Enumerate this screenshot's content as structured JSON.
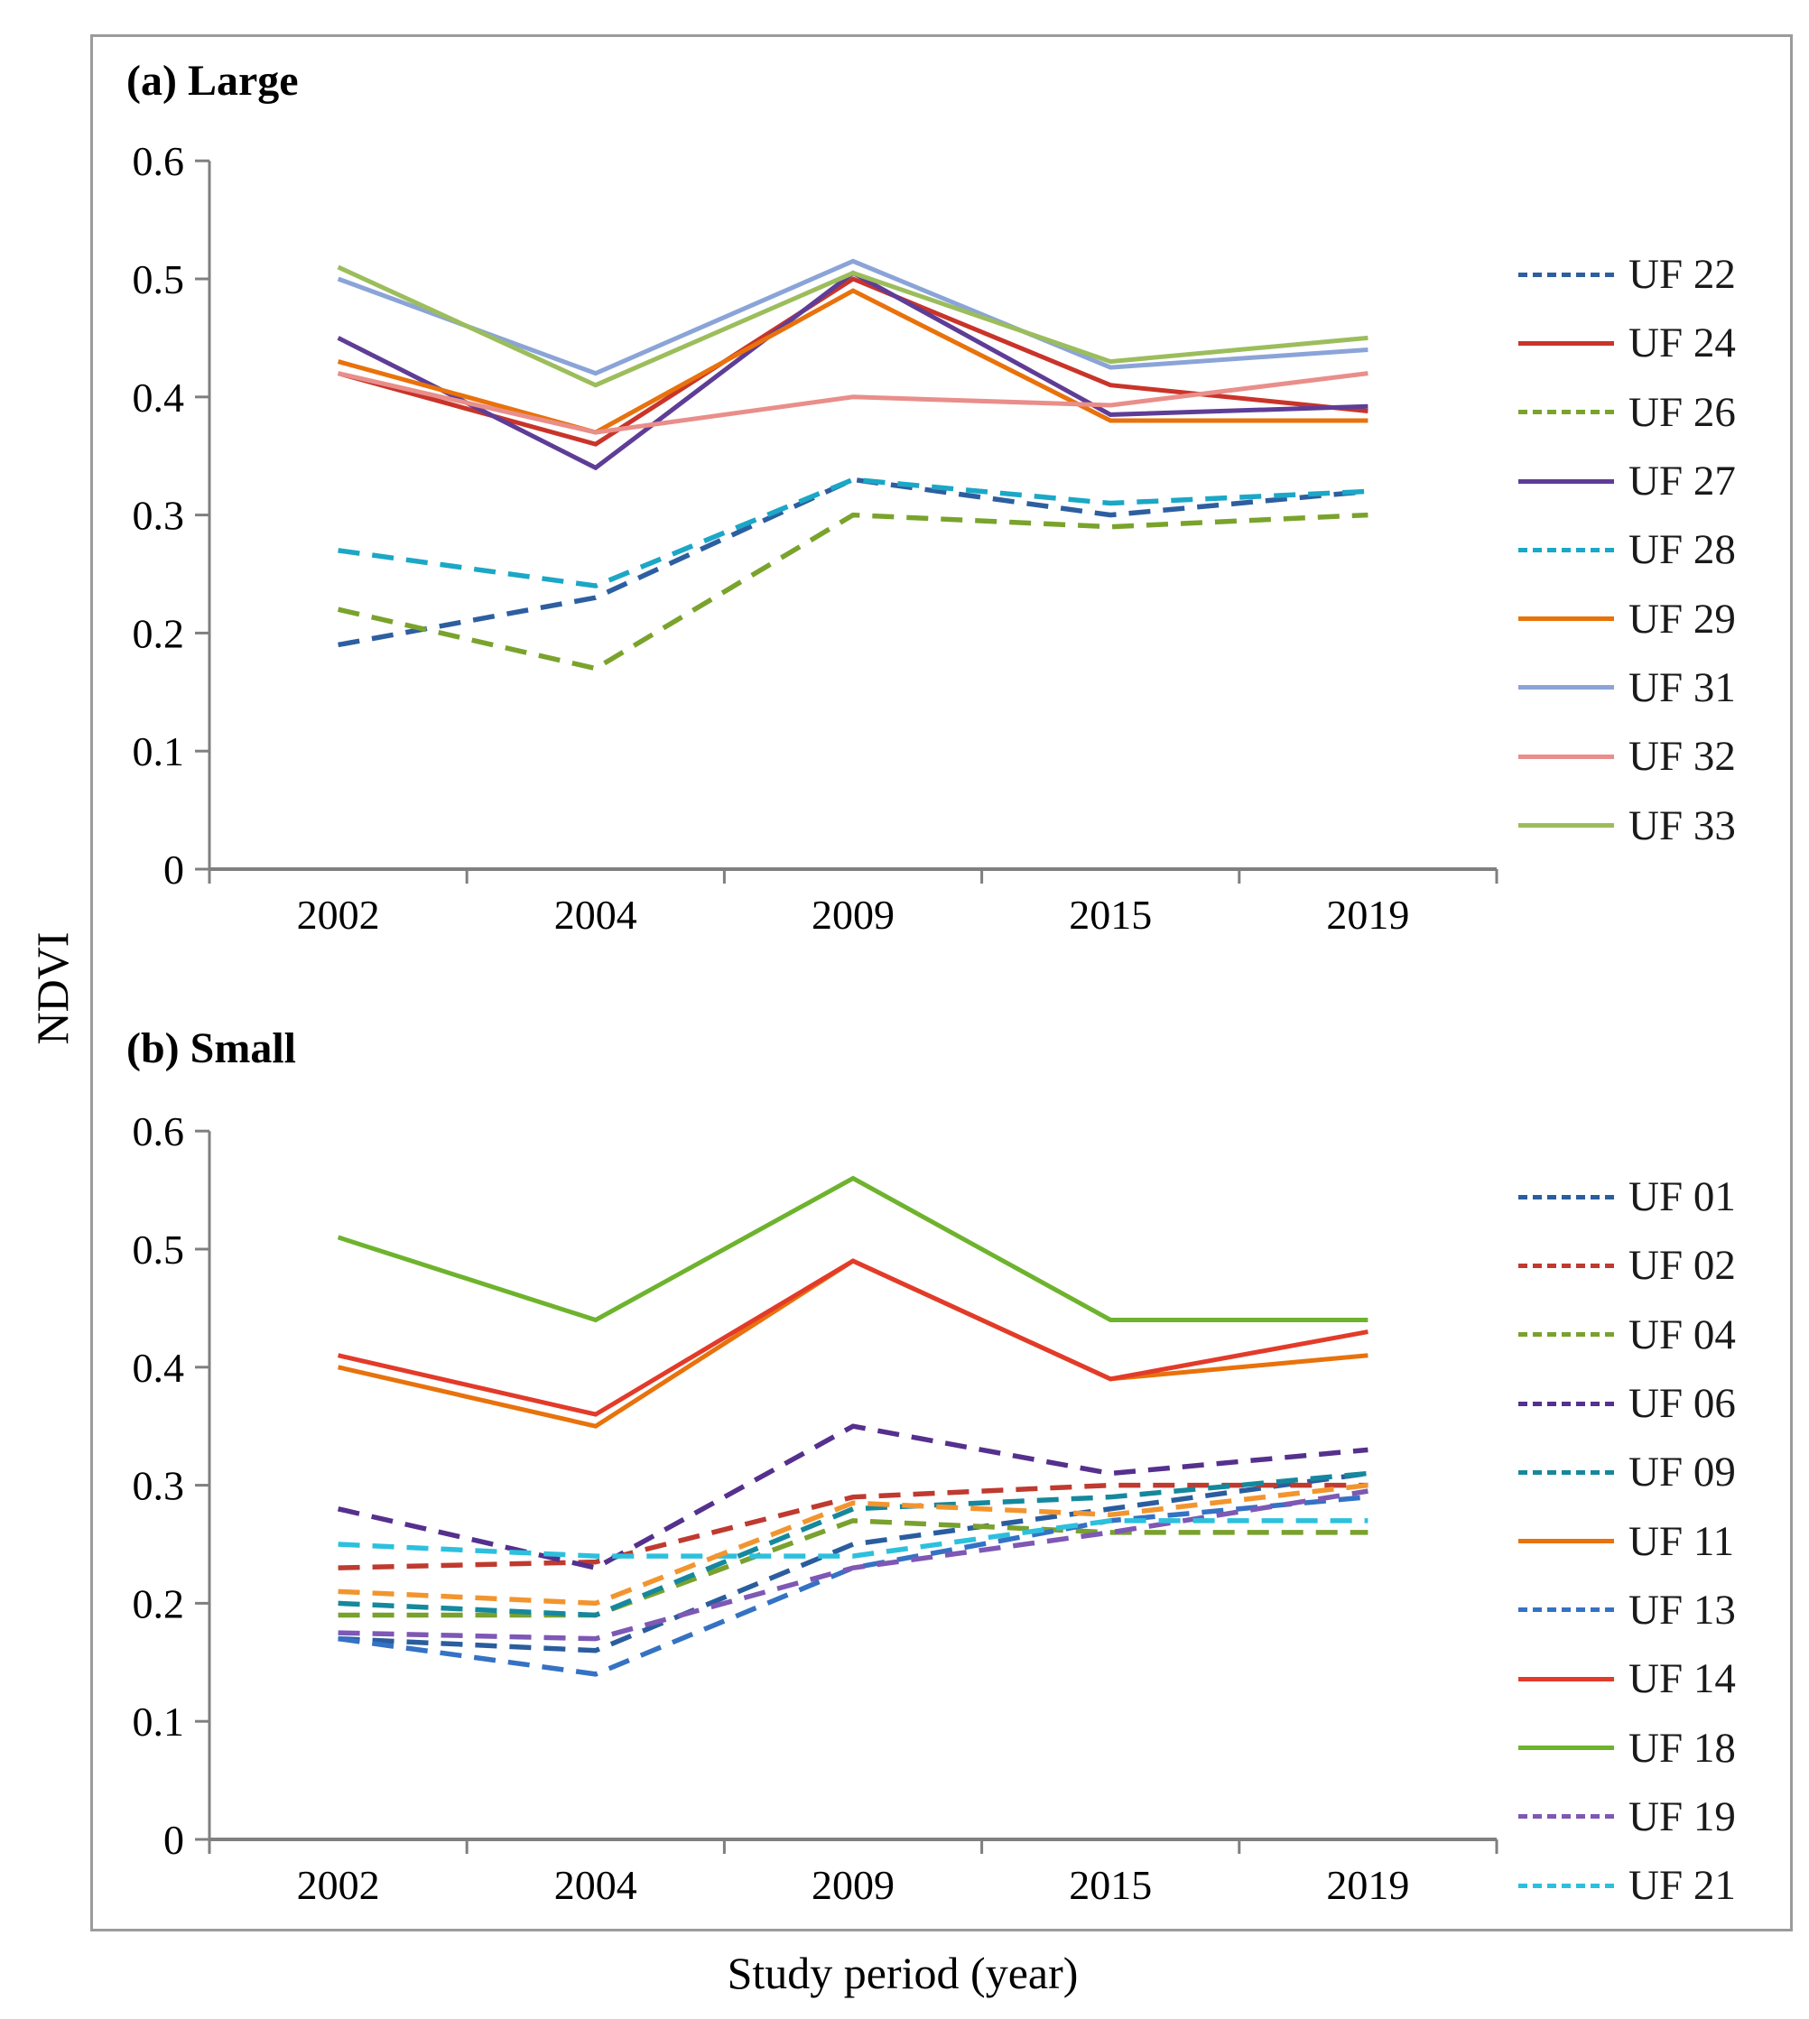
{
  "figure": {
    "ylabel": "NDVI",
    "xlabel": "Study period (year)"
  },
  "chart_data": [
    {
      "type": "line",
      "panel": "a",
      "title": "(a) Large",
      "categories": [
        "2002",
        "2004",
        "2009",
        "2015",
        "2019"
      ],
      "ytick_labels": [
        "0",
        "0.1",
        "0.2",
        "0.3",
        "0.4",
        "0.5",
        "0.6"
      ],
      "ylim": [
        0,
        0.6
      ],
      "grid": false,
      "legend_position": "right",
      "series": [
        {
          "name": "UF 22",
          "style": "dashed",
          "color": "#2d5fa0",
          "values": [
            0.19,
            0.23,
            0.33,
            0.3,
            0.32
          ]
        },
        {
          "name": "UF 24",
          "style": "solid",
          "color": "#c9342a",
          "values": [
            0.42,
            0.36,
            0.5,
            0.41,
            0.388
          ]
        },
        {
          "name": "UF 26",
          "style": "dashed",
          "color": "#7aa32c",
          "values": [
            0.22,
            0.17,
            0.3,
            0.29,
            0.3
          ]
        },
        {
          "name": "UF 27",
          "style": "solid",
          "color": "#5e3d96",
          "values": [
            0.45,
            0.34,
            0.505,
            0.385,
            0.392
          ]
        },
        {
          "name": "UF 28",
          "style": "dashed",
          "color": "#1ba7c6",
          "values": [
            0.27,
            0.24,
            0.33,
            0.31,
            0.32
          ]
        },
        {
          "name": "UF 29",
          "style": "solid",
          "color": "#e8720c",
          "values": [
            0.43,
            0.37,
            0.49,
            0.38,
            0.38
          ]
        },
        {
          "name": "UF 31",
          "style": "solid",
          "color": "#8ba4d8",
          "values": [
            0.5,
            0.42,
            0.515,
            0.425,
            0.44
          ]
        },
        {
          "name": "UF 32",
          "style": "solid",
          "color": "#e98e8a",
          "values": [
            0.42,
            0.37,
            0.4,
            0.393,
            0.42
          ]
        },
        {
          "name": "UF 33",
          "style": "solid",
          "color": "#9cbd5c",
          "values": [
            0.51,
            0.41,
            0.505,
            0.43,
            0.45
          ]
        }
      ]
    },
    {
      "type": "line",
      "panel": "b",
      "title": "(b) Small",
      "categories": [
        "2002",
        "2004",
        "2009",
        "2015",
        "2019"
      ],
      "ytick_labels": [
        "0",
        "0.1",
        "0.2",
        "0.3",
        "0.4",
        "0.5",
        "0.6"
      ],
      "ylim": [
        0,
        0.6
      ],
      "grid": false,
      "legend_position": "right",
      "series": [
        {
          "name": "UF 01",
          "style": "dashed",
          "color": "#2a5d9e",
          "values": [
            0.17,
            0.16,
            0.25,
            0.28,
            0.31
          ]
        },
        {
          "name": "UF 02",
          "style": "dashed",
          "color": "#bf3a2f",
          "values": [
            0.23,
            0.235,
            0.29,
            0.3,
            0.3
          ]
        },
        {
          "name": "UF 04",
          "style": "dashed",
          "color": "#79a12d",
          "values": [
            0.19,
            0.19,
            0.27,
            0.26,
            0.26
          ]
        },
        {
          "name": "UF 06",
          "style": "dashed",
          "color": "#55308d",
          "values": [
            0.28,
            0.23,
            0.35,
            0.31,
            0.33
          ]
        },
        {
          "name": "UF 09",
          "style": "dashed",
          "color": "#15889d",
          "values": [
            0.2,
            0.19,
            0.28,
            0.29,
            0.31
          ]
        },
        {
          "name": "UF 11",
          "style": "solid",
          "color": "#e8720c",
          "values": [
            0.4,
            0.35,
            0.49,
            0.39,
            0.41
          ]
        },
        {
          "name": "UF 13",
          "style": "dashed",
          "color": "#3472c4",
          "values": [
            0.17,
            0.14,
            0.23,
            0.27,
            0.29
          ]
        },
        {
          "name": "UF 14",
          "style": "solid",
          "color": "#e23b2a",
          "values": [
            0.41,
            0.36,
            0.49,
            0.39,
            0.43
          ]
        },
        {
          "name": "UF 18",
          "style": "solid",
          "color": "#6eb32d",
          "values": [
            0.51,
            0.44,
            0.56,
            0.44,
            0.44
          ]
        },
        {
          "name": "UF 19",
          "style": "dashed",
          "color": "#7e58b5",
          "values": [
            0.175,
            0.17,
            0.23,
            0.26,
            0.295
          ]
        },
        {
          "name": "UF 21",
          "style": "dashed",
          "color": "#2cc0dd",
          "values": [
            0.25,
            0.24,
            0.24,
            0.27,
            0.27
          ]
        },
        {
          "name": null,
          "style": "dashed",
          "color": "#f2952e",
          "values": [
            0.21,
            0.2,
            0.285,
            0.275,
            0.3
          ],
          "in_legend": false
        }
      ]
    }
  ]
}
